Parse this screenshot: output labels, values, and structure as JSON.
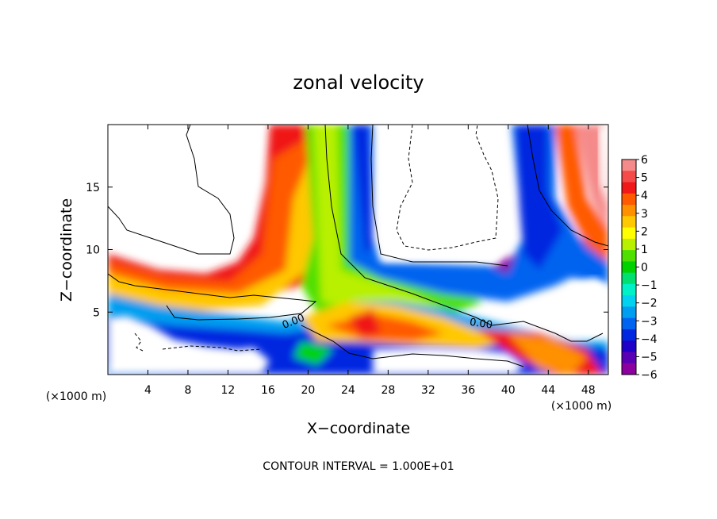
{
  "chart_data": {
    "type": "heatmap",
    "title": "zonal velocity",
    "xlabel": "X−coordinate",
    "ylabel": "Z−coordinate",
    "x_unit_label": "(×1000 m)",
    "x_unit_label_right": "(×1000 m)",
    "xlim": [
      0,
      50
    ],
    "ylim": [
      0,
      20
    ],
    "x_ticks": [
      4,
      8,
      12,
      16,
      20,
      24,
      28,
      32,
      36,
      40,
      44,
      48
    ],
    "y_ticks": [
      5,
      10,
      15
    ],
    "footer": "CONTOUR INTERVAL = 1.000E+01",
    "contour_label_1": "0.00",
    "contour_label_2": "0.00",
    "colorbar": {
      "ticks": [
        "6",
        "5",
        "4",
        "3",
        "2",
        "1",
        "0",
        "−1",
        "−2",
        "−3",
        "−4",
        "−5",
        "−6"
      ],
      "range": [
        -6,
        6
      ],
      "colors": [
        "#f58a8a",
        "#f54a4a",
        "#f01818",
        "#ff5a00",
        "#ff9000",
        "#ffc800",
        "#ffff00",
        "#b8f000",
        "#50e000",
        "#00d200",
        "#00e070",
        "#00f0c8",
        "#00d2f0",
        "#009ef0",
        "#0064f0",
        "#0028e0",
        "#1e00c8",
        "#5a00b4",
        "#8c00a0"
      ]
    },
    "grid": false,
    "legend": "colorbar right"
  }
}
